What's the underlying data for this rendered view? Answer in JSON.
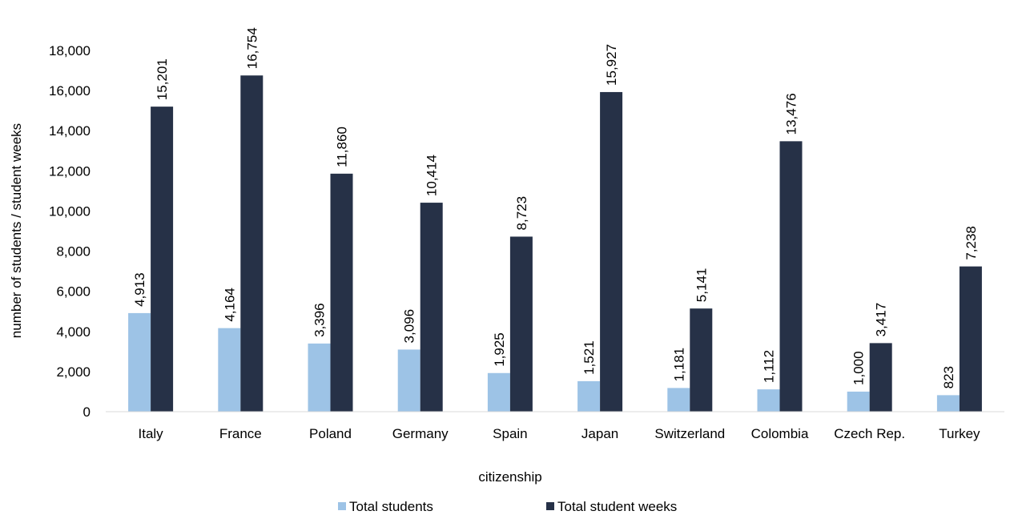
{
  "chart_data": {
    "type": "bar",
    "xlabel": "citizenship",
    "ylabel": "number of students / student weeks",
    "categories": [
      "Italy",
      "France",
      "Poland",
      "Germany",
      "Spain",
      "Japan",
      "Switzerland",
      "Colombia",
      "Czech Rep.",
      "Turkey"
    ],
    "series": [
      {
        "name": "Total students",
        "color": "#9dc3e6",
        "values": [
          4913,
          4164,
          3396,
          3096,
          1925,
          1521,
          1181,
          1112,
          1000,
          823
        ],
        "labels": [
          "4,913",
          "4,164",
          "3,396",
          "3,096",
          "1,925",
          "1,521",
          "1,181",
          "1,112",
          "1,000",
          "823"
        ]
      },
      {
        "name": "Total student weeks",
        "color": "#263147",
        "values": [
          15201,
          16754,
          11860,
          10414,
          8723,
          15927,
          5141,
          13476,
          3417,
          7238
        ],
        "labels": [
          "15,201",
          "16,754",
          "11,860",
          "10,414",
          "8,723",
          "15,927",
          "5,141",
          "13,476",
          "3,417",
          "7,238"
        ]
      }
    ],
    "ylim": [
      0,
      18000
    ],
    "yticks": [
      0,
      2000,
      4000,
      6000,
      8000,
      10000,
      12000,
      14000,
      16000,
      18000
    ],
    "ytick_labels": [
      "0",
      "2,000",
      "4,000",
      "6,000",
      "8,000",
      "10,000",
      "12,000",
      "14,000",
      "16,000",
      "18,000"
    ],
    "grid": false,
    "legend_position": "bottom"
  }
}
